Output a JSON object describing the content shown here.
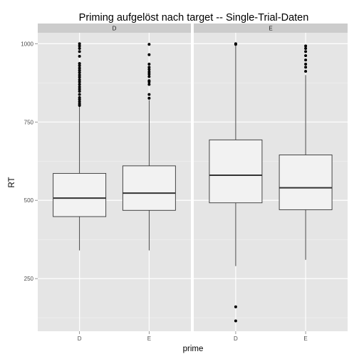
{
  "chart_data": {
    "type": "boxplot",
    "title": "Priming aufgelöst nach target -- Single-Trial-Daten",
    "xlabel": "prime",
    "ylabel": "RT",
    "ylim": [
      82,
      1035
    ],
    "y_ticks": [
      250,
      500,
      750,
      1000
    ],
    "categories": [
      "D",
      "E"
    ],
    "grid": true,
    "colors": {
      "panel": "#e5e5e5",
      "grid_major": "#ffffff",
      "grid_minor": "#f2f2f2",
      "strip": "#cccccc",
      "box_fill": "#f2f2f2",
      "box_line": "#333333",
      "outlier": "#000000"
    },
    "facets": [
      {
        "label": "D",
        "boxes": [
          {
            "category": "D",
            "whisker_low": 340,
            "q1": 448,
            "median": 507,
            "q3": 586,
            "whisker_high": 800,
            "outliers": [
              803,
              808,
              815,
              822,
              828,
              838,
              848,
              855,
              862,
              870,
              878,
              885,
              893,
              900,
              908,
              915,
              922,
              930,
              937,
              960,
              975,
              985,
              993,
              1000
            ]
          },
          {
            "category": "E",
            "whisker_low": 340,
            "q1": 468,
            "median": 523,
            "q3": 610,
            "whisker_high": 820,
            "outliers": [
              826,
              838,
              870,
              878,
              882,
              895,
              903,
              910,
              918,
              925,
              935,
              965,
              998
            ]
          }
        ]
      },
      {
        "label": "E",
        "boxes": [
          {
            "category": "D",
            "whisker_low": 290,
            "q1": 492,
            "median": 580,
            "q3": 693,
            "whisker_high": 1000,
            "outliers": [
              115,
              160,
              998,
              1000
            ]
          },
          {
            "category": "E",
            "whisker_low": 310,
            "q1": 470,
            "median": 540,
            "q3": 645,
            "whisker_high": 900,
            "outliers": [
              912,
              925,
              935,
              948,
              962,
              975,
              985,
              993
            ]
          }
        ]
      }
    ]
  }
}
